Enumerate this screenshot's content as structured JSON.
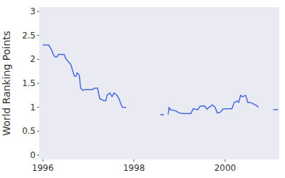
{
  "chart_data": {
    "type": "line",
    "y_label": "World Ranking Points",
    "x": [
      1996.0,
      1996.13,
      1996.16,
      1996.19,
      1996.23,
      1996.27,
      1996.31,
      1996.34,
      1996.47,
      1996.5,
      1996.56,
      1996.61,
      1996.66,
      1996.69,
      1996.73,
      1996.75,
      1996.8,
      1996.83,
      1996.88,
      1996.91,
      1997.09,
      1997.14,
      1997.2,
      1997.25,
      1997.31,
      1997.38,
      1997.41,
      1997.47,
      1997.52,
      1997.56,
      1997.63,
      1997.67,
      1997.72,
      1997.75,
      1997.83,
      1998.2,
      1998.58,
      1998.66,
      1998.7,
      1998.75,
      1998.77,
      1998.8,
      1998.9,
      1999.0,
      1999.1,
      1999.25,
      1999.3,
      1999.4,
      1999.45,
      1999.55,
      1999.6,
      1999.65,
      1999.72,
      1999.78,
      1999.83,
      1999.9,
      1999.95,
      2000.0,
      2000.15,
      2000.2,
      2000.27,
      2000.3,
      2000.34,
      2000.38,
      2000.45,
      2000.5,
      2000.55,
      2000.62,
      2000.7,
      2000.73,
      2000.9,
      2001.06,
      2001.16
    ],
    "series": [
      {
        "name": "World Ranking Points",
        "color": "#4169e1",
        "values": [
          2.3,
          2.3,
          2.25,
          2.2,
          2.1,
          2.05,
          2.05,
          2.1,
          2.1,
          2.02,
          1.95,
          1.9,
          1.75,
          1.65,
          1.65,
          1.72,
          1.67,
          1.4,
          1.35,
          1.37,
          1.37,
          1.4,
          1.4,
          1.18,
          1.15,
          1.13,
          1.25,
          1.3,
          1.22,
          1.3,
          1.25,
          1.18,
          1.05,
          1.0,
          1.0,
          null,
          0.85,
          0.84,
          null,
          0.85,
          1.0,
          0.95,
          0.93,
          0.88,
          0.87,
          0.87,
          0.97,
          0.95,
          1.02,
          1.03,
          0.96,
          1.0,
          1.05,
          1.0,
          0.88,
          0.9,
          0.96,
          0.97,
          0.97,
          1.1,
          1.13,
          1.1,
          1.25,
          1.22,
          1.25,
          1.1,
          1.1,
          1.07,
          1.03,
          1.0,
          null,
          0.95,
          0.95
        ]
      }
    ],
    "xlim": [
      1995.92,
      2001.19
    ],
    "ylim": [
      -0.09,
      3.09
    ],
    "xticks": [
      1996,
      1998,
      2000
    ],
    "yticks": [
      0,
      0.5,
      1,
      1.5,
      2,
      2.5,
      3
    ],
    "grid": false
  }
}
